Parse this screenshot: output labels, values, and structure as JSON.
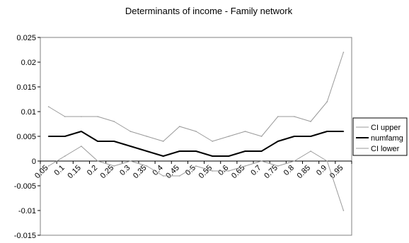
{
  "chart_data": {
    "type": "line",
    "title": "Determinants of income - Family network",
    "xlabel": "",
    "ylabel": "",
    "categories": [
      "0.05",
      "0.1",
      "0.15",
      "0.2",
      "0.25",
      "0.3",
      "0.35",
      "0.4",
      "0.45",
      "0.5",
      "0.55",
      "0.6",
      "0.65",
      "0.7",
      "0.75",
      "0.8",
      "0.85",
      "0.9",
      "0.95"
    ],
    "ylim": [
      -0.015,
      0.025
    ],
    "yticks": [
      "0.025",
      "0.02",
      "0.015",
      "0.01",
      "0.005",
      "0",
      "-0.005",
      "-0.01",
      "-0.015"
    ],
    "ytick_values": [
      0.025,
      0.02,
      0.015,
      0.01,
      0.005,
      0,
      -0.005,
      -0.01,
      -0.015
    ],
    "grid": false,
    "legend_position": "right",
    "series": [
      {
        "name": "CI upper",
        "color": "#999999",
        "values": [
          0.011,
          0.009,
          0.009,
          0.009,
          0.008,
          0.006,
          0.005,
          0.004,
          0.007,
          0.006,
          0.004,
          0.005,
          0.006,
          0.005,
          0.009,
          0.009,
          0.008,
          0.012,
          0.022
        ]
      },
      {
        "name": "numfamg",
        "color": "#000000",
        "values": [
          0.005,
          0.005,
          0.006,
          0.004,
          0.004,
          0.003,
          0.002,
          0.001,
          0.002,
          0.002,
          0.001,
          0.001,
          0.002,
          0.002,
          0.004,
          0.005,
          0.005,
          0.006,
          0.006
        ]
      },
      {
        "name": "CI lower",
        "color": "#999999",
        "values": [
          -0.001,
          0.001,
          0.003,
          0,
          -0.001,
          0,
          -0.001,
          -0.003,
          -0.003,
          -0.001,
          -0.002,
          -0.002,
          -0.001,
          0,
          -0.001,
          0,
          0.002,
          0,
          -0.01
        ]
      }
    ]
  }
}
